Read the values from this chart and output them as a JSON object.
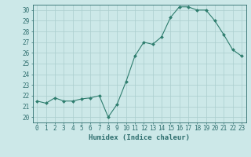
{
  "x": [
    0,
    1,
    2,
    3,
    4,
    5,
    6,
    7,
    8,
    9,
    10,
    11,
    12,
    13,
    14,
    15,
    16,
    17,
    18,
    19,
    20,
    21,
    22,
    23
  ],
  "y": [
    21.5,
    21.3,
    21.8,
    21.5,
    21.5,
    21.7,
    21.8,
    22.0,
    20.0,
    21.2,
    23.3,
    25.7,
    27.0,
    26.8,
    27.5,
    29.3,
    30.3,
    30.3,
    30.0,
    30.0,
    29.0,
    27.7,
    26.3,
    25.7
  ],
  "line_color": "#2e7d6e",
  "marker_color": "#2e7d6e",
  "bg_color": "#cce8e8",
  "grid_color": "#aacece",
  "axis_color": "#2e6e6e",
  "xlabel": "Humidex (Indice chaleur)",
  "xlim": [
    -0.5,
    23.5
  ],
  "ylim": [
    19.5,
    30.5
  ],
  "yticks": [
    20,
    21,
    22,
    23,
    24,
    25,
    26,
    27,
    28,
    29,
    30
  ],
  "xticks": [
    0,
    1,
    2,
    3,
    4,
    5,
    6,
    7,
    8,
    9,
    10,
    11,
    12,
    13,
    14,
    15,
    16,
    17,
    18,
    19,
    20,
    21,
    22,
    23
  ],
  "fontsize_label": 6.5,
  "fontsize_tick": 5.5
}
